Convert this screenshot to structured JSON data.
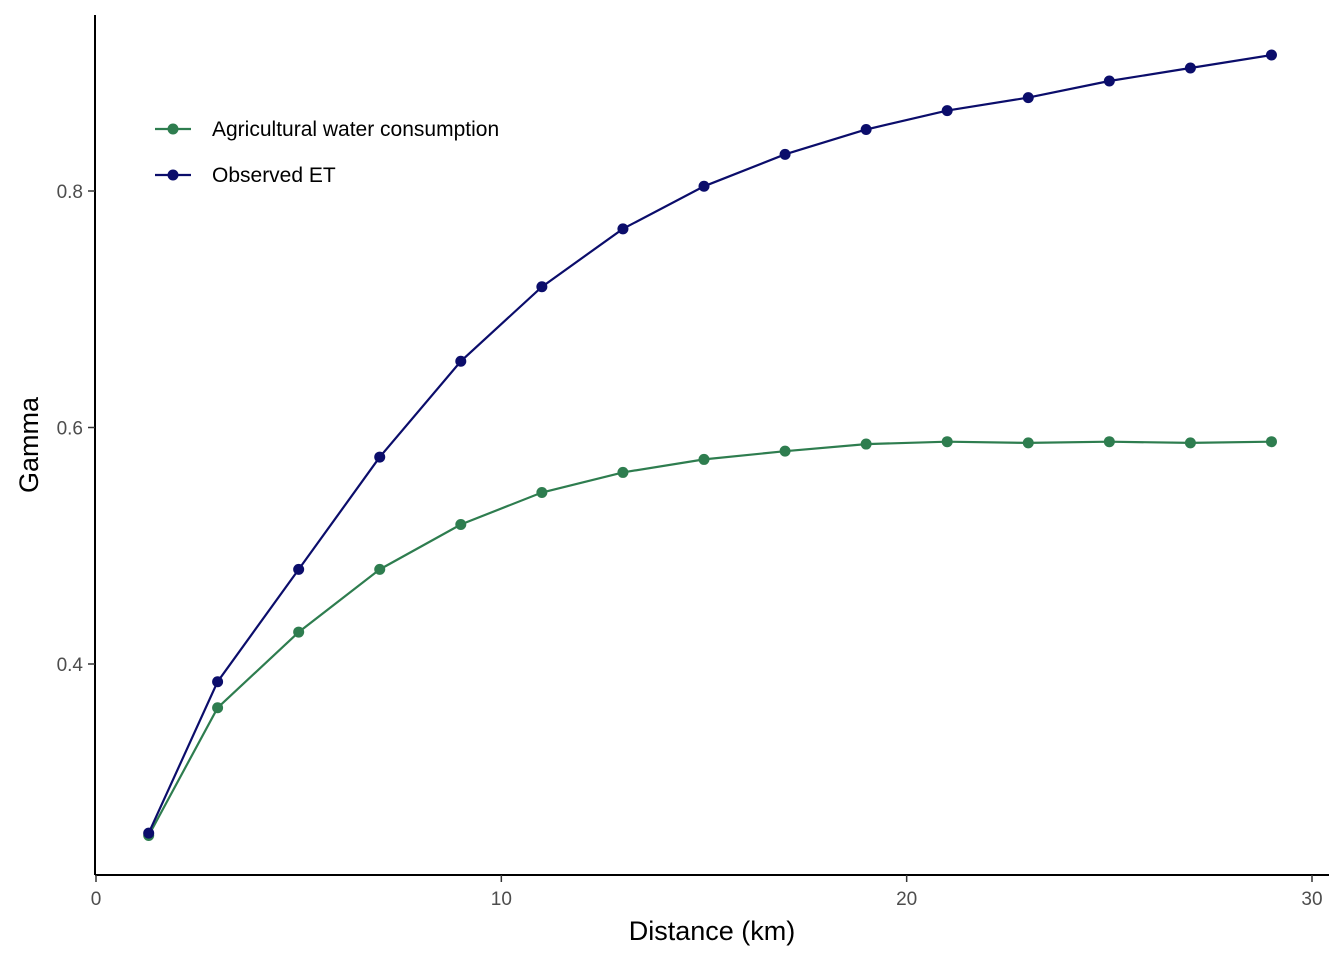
{
  "chart_data": {
    "type": "line",
    "title": "",
    "xlabel": "Distance (km)",
    "ylabel": "Gamma",
    "xlim": [
      0,
      30
    ],
    "ylim": [
      0.23,
      0.95
    ],
    "x_ticks": [
      0,
      10,
      20,
      30
    ],
    "y_ticks": [
      0.4,
      0.6,
      0.8
    ],
    "y_tick_labels": [
      "0.4",
      "0.6",
      "0.8"
    ],
    "grid": false,
    "legend_position": "top-left",
    "x": [
      1.3,
      3,
      5,
      7,
      9,
      11,
      13,
      15,
      17,
      19,
      21,
      23,
      25,
      27,
      29
    ],
    "series": [
      {
        "name": "Agricultural water consumption",
        "color": "#2e7d4f",
        "values": [
          0.255,
          0.363,
          0.427,
          0.48,
          0.518,
          0.545,
          0.562,
          0.573,
          0.58,
          0.586,
          0.588,
          0.587,
          0.588,
          0.587,
          0.588
        ]
      },
      {
        "name": "Observed ET",
        "color": "#0b0d6b",
        "values": [
          0.257,
          0.385,
          0.48,
          0.575,
          0.656,
          0.719,
          0.768,
          0.804,
          0.831,
          0.852,
          0.868,
          0.879,
          0.893,
          0.904,
          0.915
        ]
      }
    ]
  }
}
